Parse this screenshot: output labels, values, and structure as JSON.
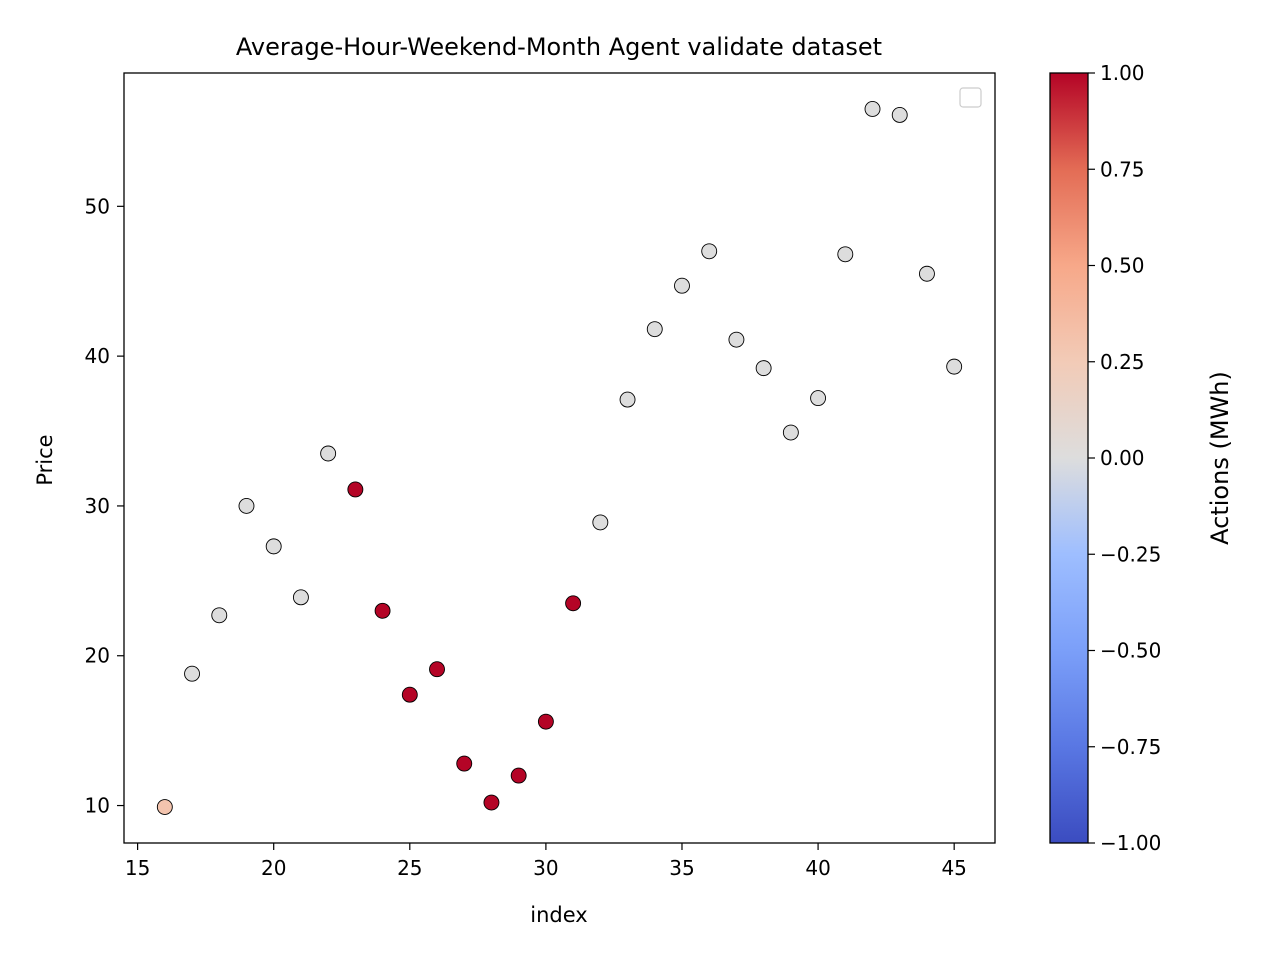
{
  "chart_data": {
    "type": "scatter",
    "title": "Average-Hour-Weekend-Month Agent validate dataset",
    "xlabel": "index",
    "ylabel": "Price",
    "xlim": [
      14.5,
      46.5
    ],
    "ylim": [
      7.5,
      58.9
    ],
    "x_ticks": [
      15,
      20,
      25,
      30,
      35,
      40,
      45
    ],
    "y_ticks": [
      10,
      20,
      30,
      40,
      50
    ],
    "grid": false,
    "legend": "top-right (empty)",
    "colorbar": {
      "label": "Actions (MWh)",
      "colormap": "coolwarm",
      "range": [
        -1.0,
        1.0
      ],
      "ticks": [
        "1.00",
        "0.75",
        "0.50",
        "0.25",
        "0.00",
        "−0.25",
        "−0.50",
        "−0.75",
        "−1.00"
      ],
      "tick_values": [
        1.0,
        0.75,
        0.5,
        0.25,
        0.0,
        -0.25,
        -0.5,
        -0.75,
        -1.0
      ]
    },
    "points": [
      {
        "x": 16,
        "y": 9.9,
        "c": 0.3
      },
      {
        "x": 17,
        "y": 18.8,
        "c": 0.0
      },
      {
        "x": 18,
        "y": 22.7,
        "c": 0.0
      },
      {
        "x": 19,
        "y": 30.0,
        "c": 0.0
      },
      {
        "x": 20,
        "y": 27.3,
        "c": 0.0
      },
      {
        "x": 21,
        "y": 23.9,
        "c": 0.0
      },
      {
        "x": 22,
        "y": 33.5,
        "c": 0.0
      },
      {
        "x": 23,
        "y": 31.1,
        "c": 1.0
      },
      {
        "x": 24,
        "y": 23.0,
        "c": 1.0
      },
      {
        "x": 25,
        "y": 17.4,
        "c": 1.0
      },
      {
        "x": 26,
        "y": 19.1,
        "c": 1.0
      },
      {
        "x": 27,
        "y": 12.8,
        "c": 1.0
      },
      {
        "x": 28,
        "y": 10.2,
        "c": 1.0
      },
      {
        "x": 29,
        "y": 12.0,
        "c": 1.0
      },
      {
        "x": 30,
        "y": 15.6,
        "c": 1.0
      },
      {
        "x": 31,
        "y": 23.5,
        "c": 1.0
      },
      {
        "x": 32,
        "y": 28.9,
        "c": 0.0
      },
      {
        "x": 33,
        "y": 37.1,
        "c": 0.0
      },
      {
        "x": 34,
        "y": 41.8,
        "c": 0.0
      },
      {
        "x": 35,
        "y": 44.7,
        "c": 0.0
      },
      {
        "x": 36,
        "y": 47.0,
        "c": 0.0
      },
      {
        "x": 37,
        "y": 41.1,
        "c": 0.0
      },
      {
        "x": 38,
        "y": 39.2,
        "c": 0.0
      },
      {
        "x": 39,
        "y": 34.9,
        "c": 0.0
      },
      {
        "x": 40,
        "y": 37.2,
        "c": 0.0
      },
      {
        "x": 41,
        "y": 46.8,
        "c": 0.0
      },
      {
        "x": 42,
        "y": 56.5,
        "c": 0.0
      },
      {
        "x": 43,
        "y": 56.1,
        "c": 0.0
      },
      {
        "x": 44,
        "y": 45.5,
        "c": 0.0
      },
      {
        "x": 45,
        "y": 39.3,
        "c": 0.0
      }
    ]
  }
}
